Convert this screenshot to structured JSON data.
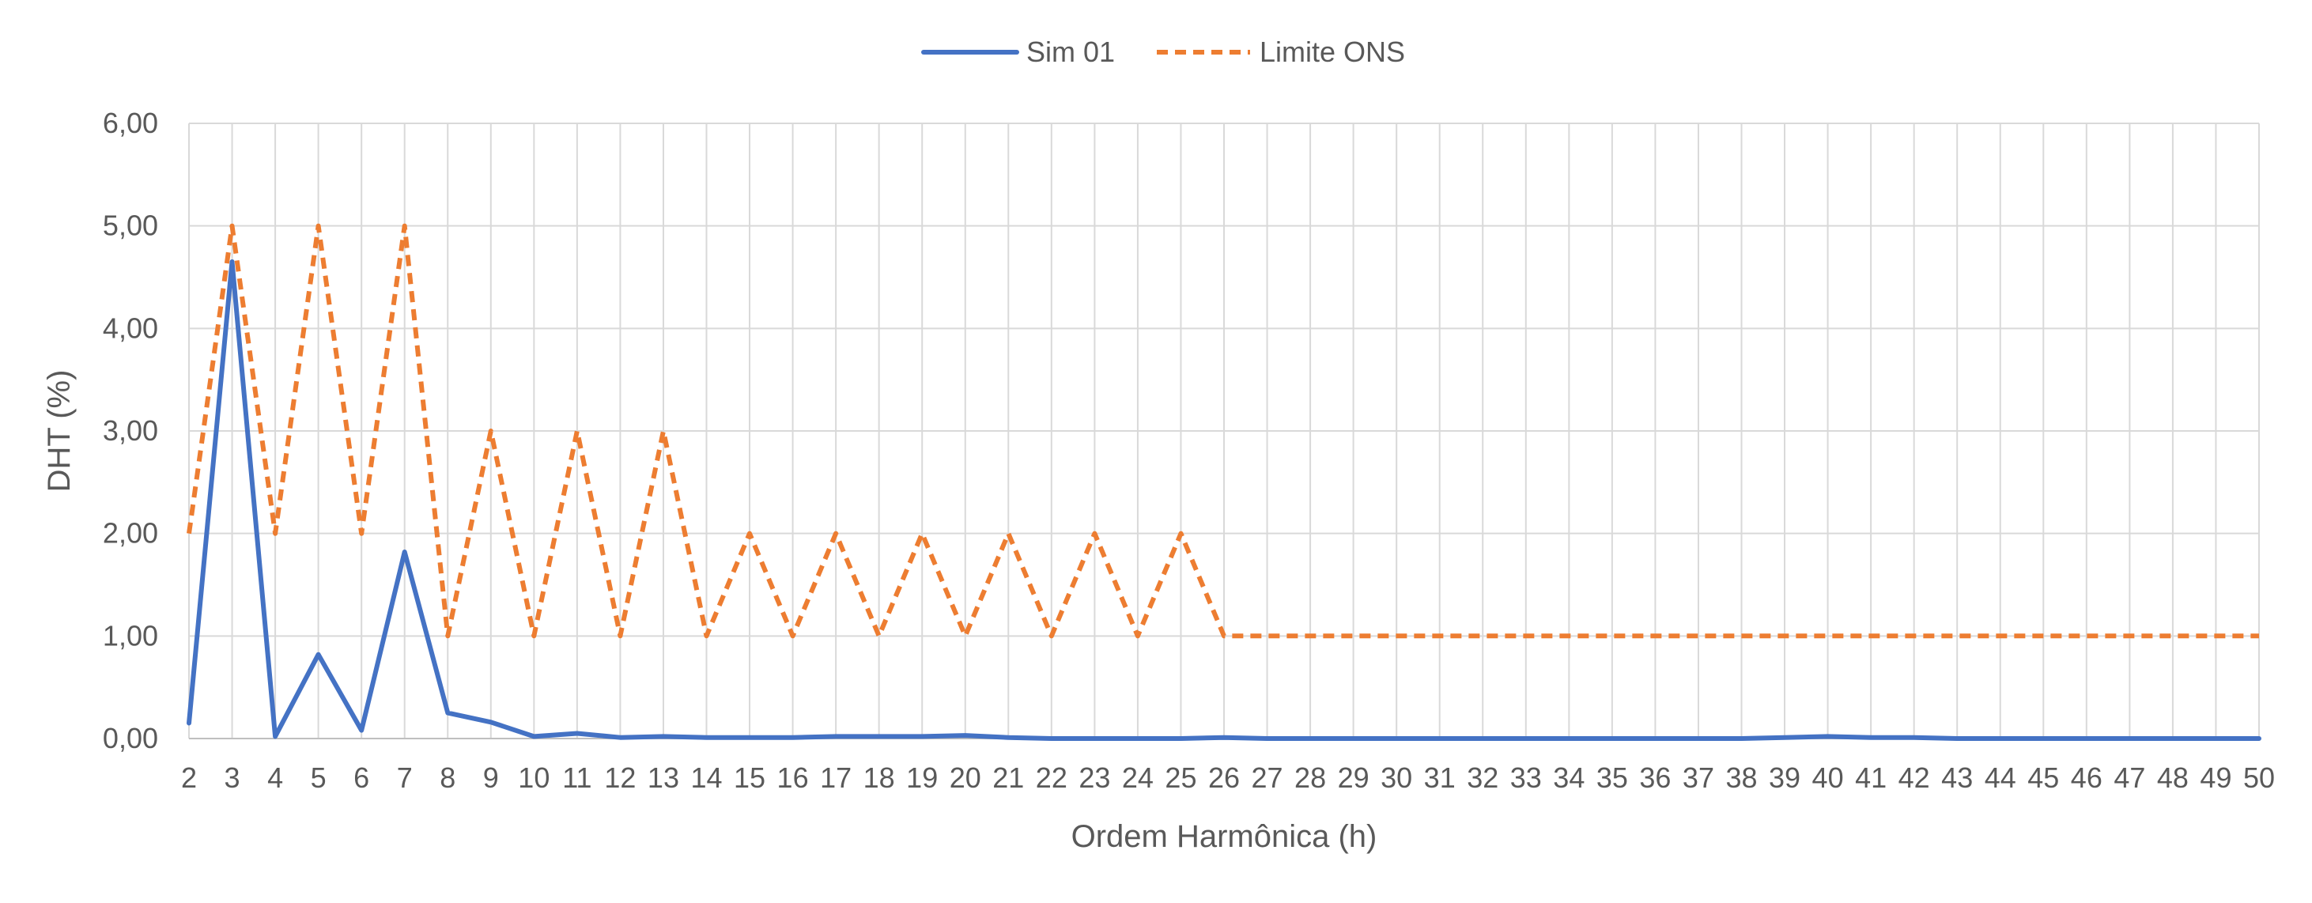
{
  "chart_data": {
    "type": "line",
    "xlabel": "Ordem Harmônica (h)",
    "ylabel": "DHT (%)",
    "ylim": [
      0,
      6
    ],
    "y_ticks": [
      "0,00",
      "1,00",
      "2,00",
      "3,00",
      "4,00",
      "5,00",
      "6,00"
    ],
    "y_tick_values": [
      0,
      1,
      2,
      3,
      4,
      5,
      6
    ],
    "grid": true,
    "legend_position": "top-center",
    "categories": [
      "2",
      "3",
      "4",
      "5",
      "6",
      "7",
      "8",
      "9",
      "10",
      "11",
      "12",
      "13",
      "14",
      "15",
      "16",
      "17",
      "18",
      "19",
      "20",
      "21",
      "22",
      "23",
      "24",
      "25",
      "26",
      "27",
      "28",
      "29",
      "30",
      "31",
      "32",
      "33",
      "34",
      "35",
      "36",
      "37",
      "38",
      "39",
      "40",
      "41",
      "42",
      "43",
      "44",
      "45",
      "46",
      "47",
      "48",
      "49",
      "50"
    ],
    "series": [
      {
        "name": "Sim 01",
        "color": "#4472C4",
        "dash": "solid",
        "values": [
          0.15,
          4.65,
          0.02,
          0.82,
          0.08,
          1.82,
          0.25,
          0.16,
          0.02,
          0.05,
          0.01,
          0.02,
          0.01,
          0.01,
          0.01,
          0.02,
          0.02,
          0.02,
          0.03,
          0.01,
          0.0,
          0.0,
          0.0,
          0.0,
          0.01,
          0.0,
          0.0,
          0.0,
          0.0,
          0.0,
          0.0,
          0.0,
          0.0,
          0.0,
          0.0,
          0.0,
          0.0,
          0.01,
          0.02,
          0.01,
          0.01,
          0.0,
          0.0,
          0.0,
          0.0,
          0.0,
          0.0,
          0.0,
          0.0
        ]
      },
      {
        "name": "Limite ONS",
        "color": "#ED7D31",
        "dash": "dashed",
        "values": [
          2,
          5,
          2,
          5,
          2,
          5,
          1,
          3,
          1,
          3,
          1,
          3,
          1,
          2,
          1,
          2,
          1,
          2,
          1,
          2,
          1,
          2,
          1,
          2,
          1,
          1,
          1,
          1,
          1,
          1,
          1,
          1,
          1,
          1,
          1,
          1,
          1,
          1,
          1,
          1,
          1,
          1,
          1,
          1,
          1,
          1,
          1,
          1,
          1
        ]
      }
    ]
  }
}
